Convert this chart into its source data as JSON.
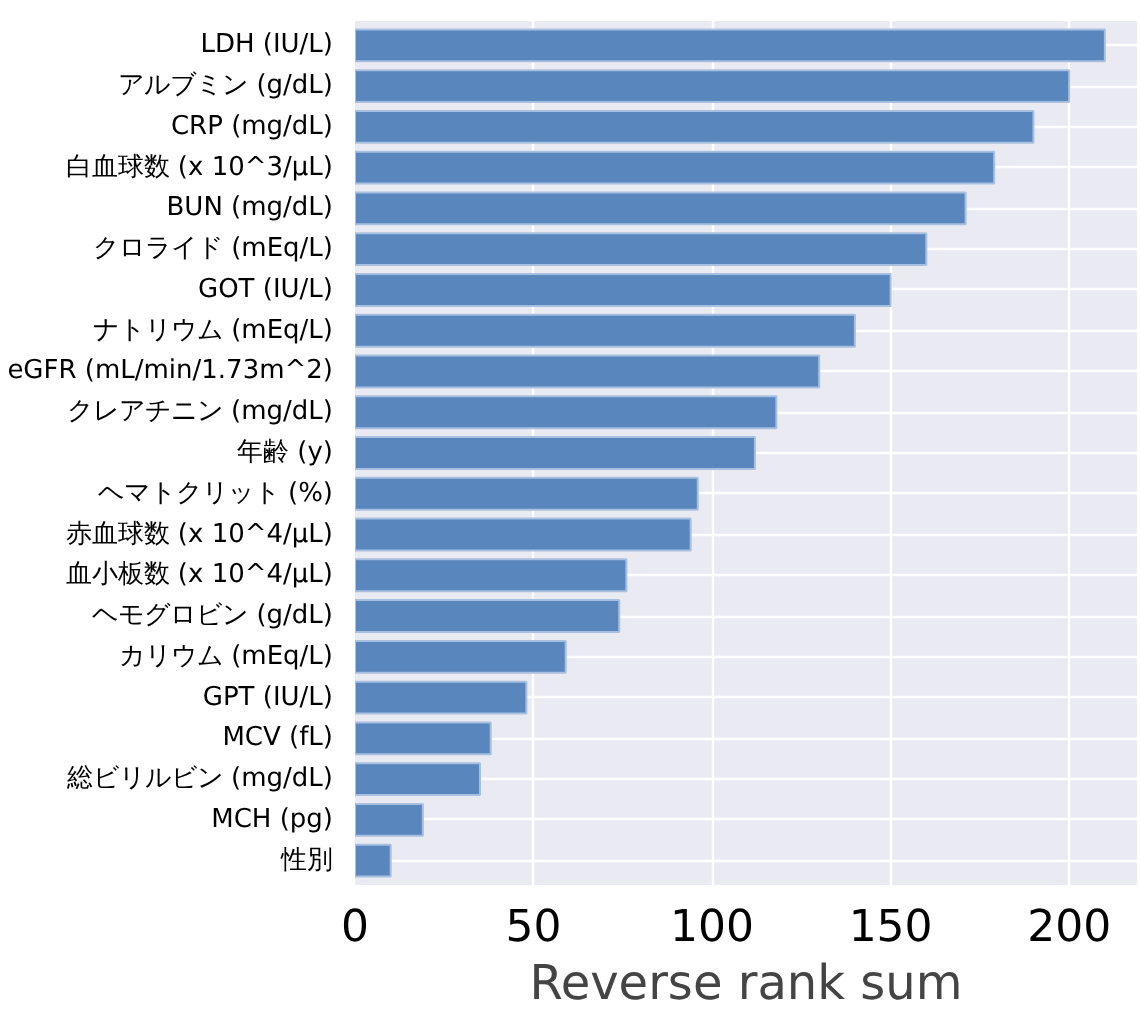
{
  "chart_data": {
    "type": "bar",
    "orientation": "horizontal",
    "xlabel": "Reverse rank sum",
    "categories": [
      "LDH (IU/L)",
      "アルブミン (g/dL)",
      "CRP (mg/dL)",
      "白血球数 (x 10^3/μL)",
      "BUN (mg/dL)",
      "クロライド (mEq/L)",
      "GOT (IU/L)",
      "ナトリウム (mEq/L)",
      "eGFR (mL/min/1.73m^2)",
      "クレアチニン (mg/dL)",
      "年齢 (y)",
      "ヘマトクリット (%)",
      "赤血球数 (x 10^4/μL)",
      "血小板数 (x 10^4/μL)",
      "ヘモグロビン (g/dL)",
      "カリウム (mEq/L)",
      "GPT (IU/L)",
      "MCV (fL)",
      "総ビリルビン (mg/dL)",
      "MCH (pg)",
      "性別"
    ],
    "values": [
      210,
      200,
      190,
      179,
      171,
      160,
      150,
      140,
      130,
      118,
      112,
      96,
      94,
      76,
      74,
      59,
      48,
      38,
      35,
      19,
      10
    ],
    "color": "#5a86be",
    "xlim": [
      0,
      219
    ],
    "xticks": [
      0,
      50,
      100,
      150,
      200
    ],
    "grid": true
  }
}
